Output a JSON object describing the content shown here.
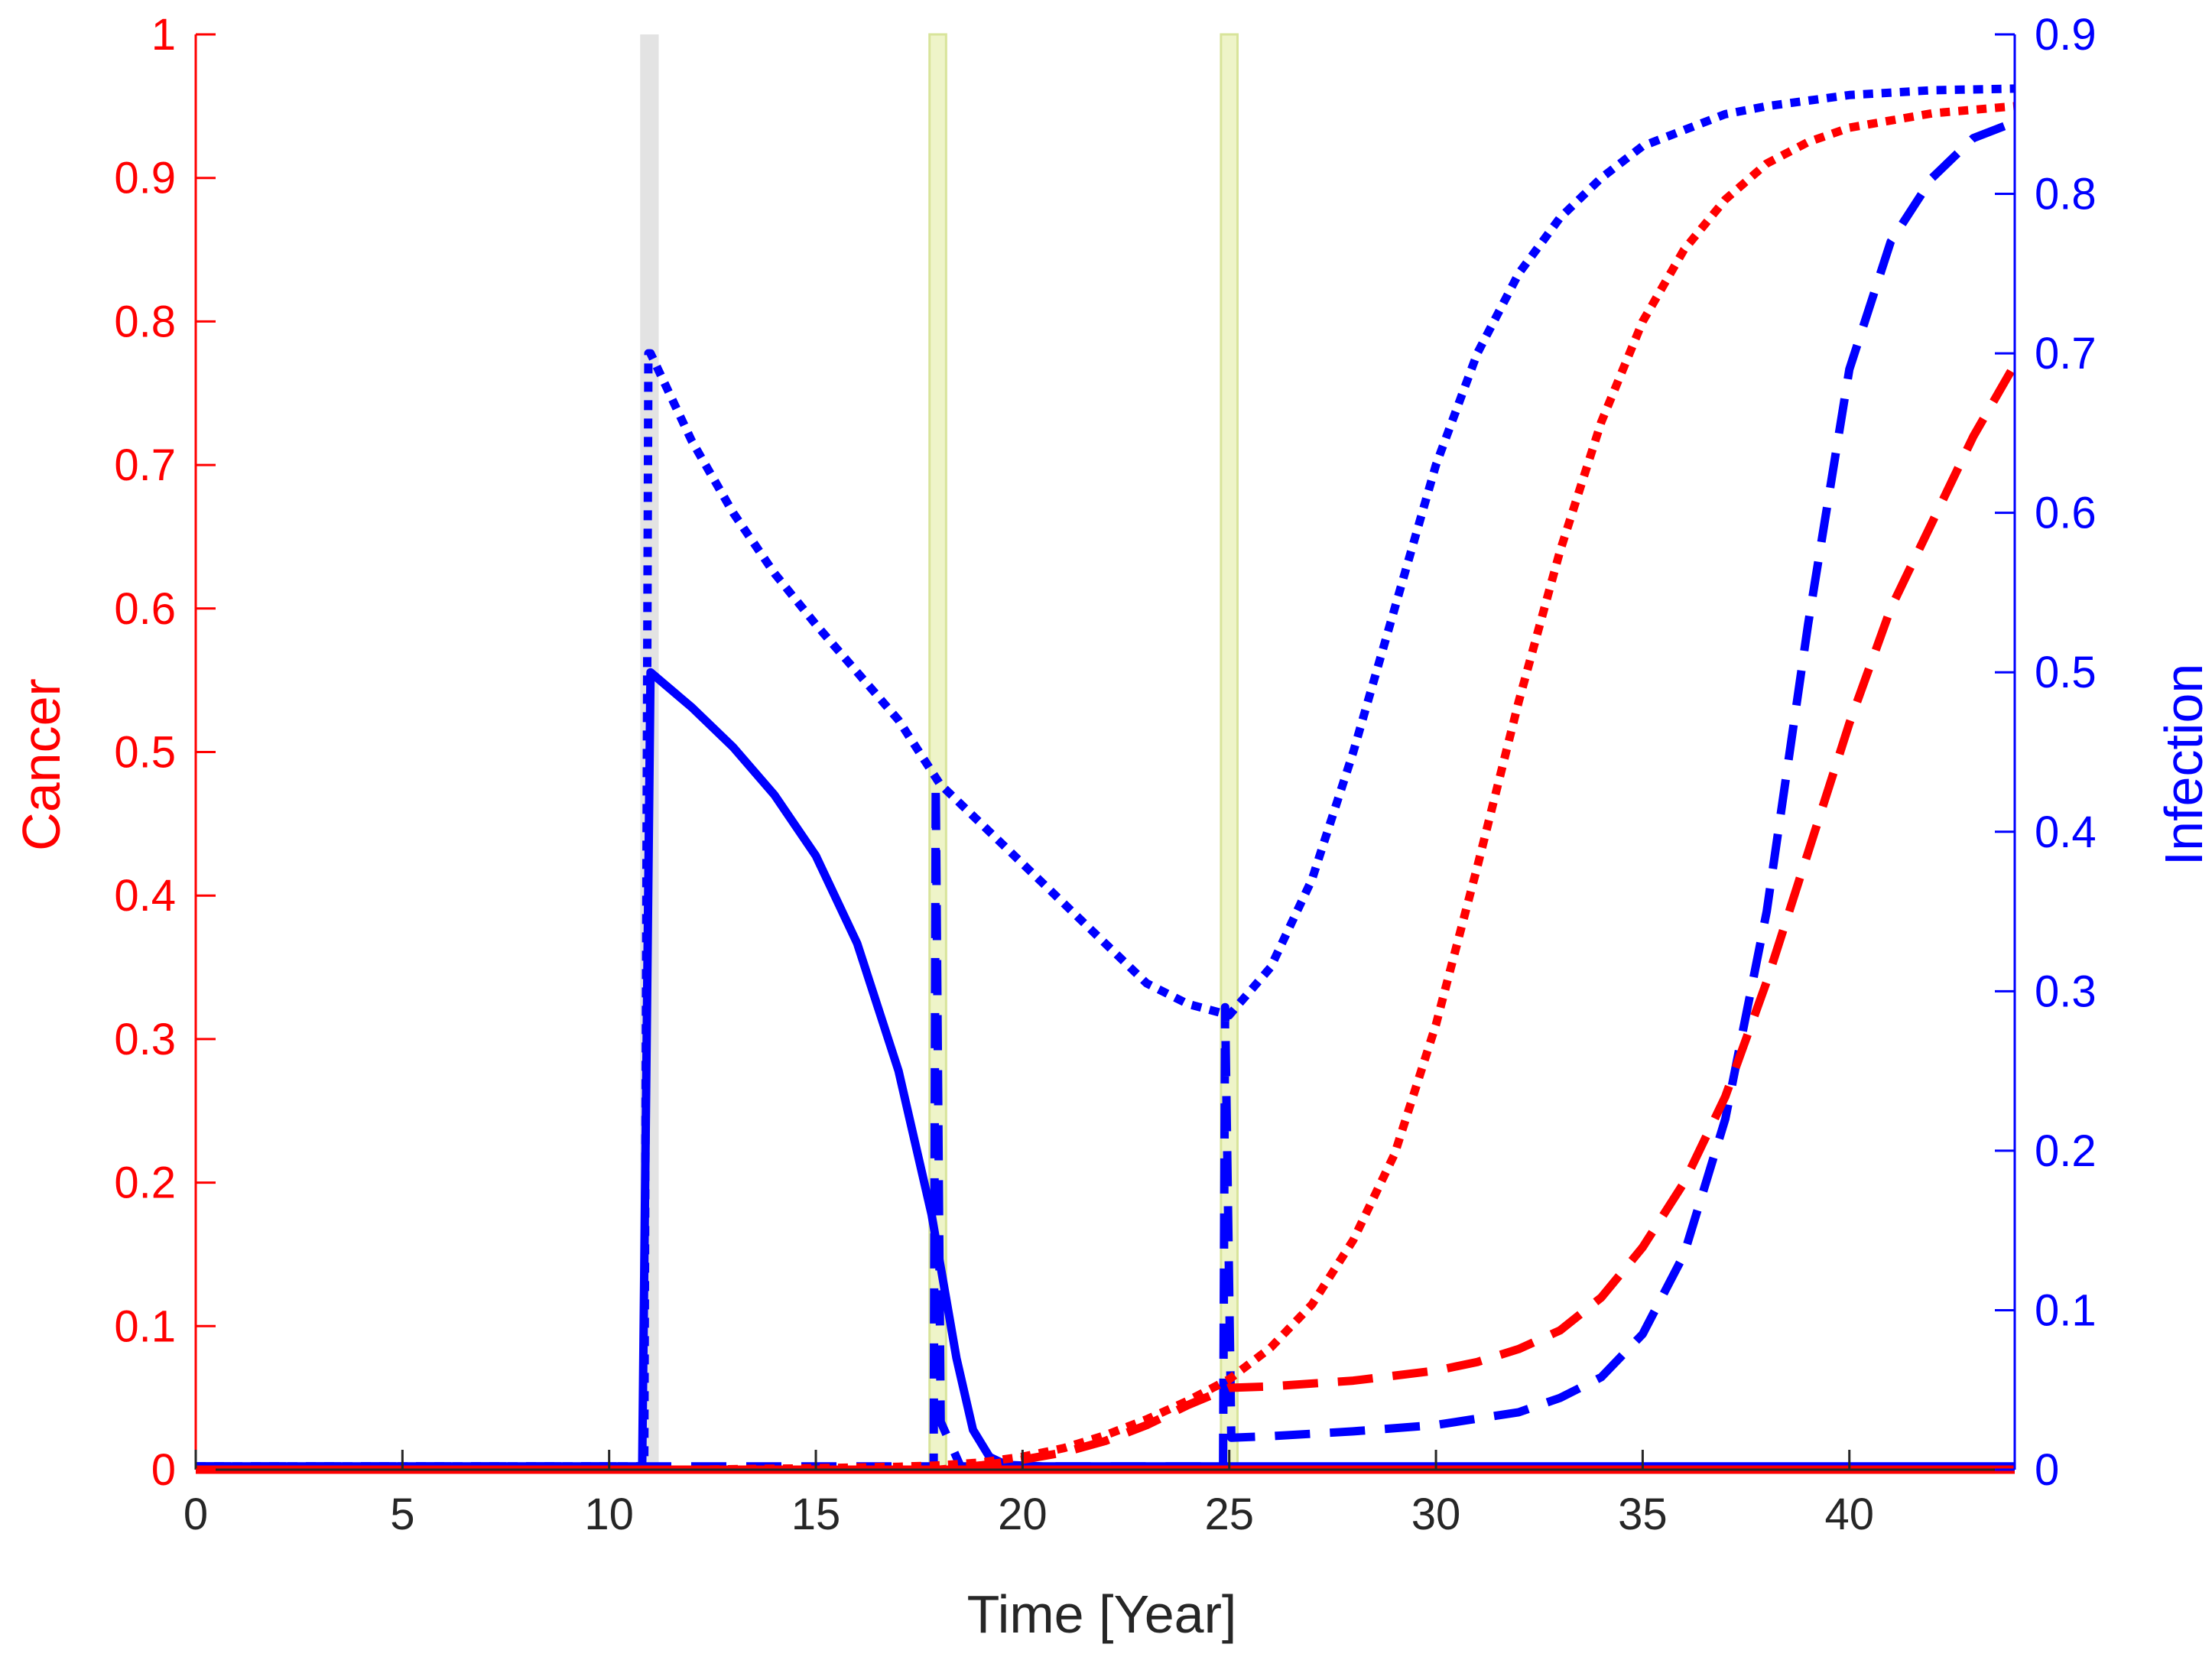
{
  "chart_data": {
    "type": "line",
    "xlabel": "Time [Year]",
    "ylabel_left": "Cancer",
    "ylabel_right": "Infection",
    "xlim": [
      0,
      44
    ],
    "ylim_left": [
      0,
      1
    ],
    "ylim_right": [
      0,
      0.9
    ],
    "x_ticks": [
      "0",
      "5",
      "10",
      "15",
      "20",
      "25",
      "30",
      "35",
      "40"
    ],
    "y_ticks_left": [
      "0",
      "0.1",
      "0.2",
      "0.3",
      "0.4",
      "0.5",
      "0.6",
      "0.7",
      "0.8",
      "0.9",
      "1"
    ],
    "y_ticks_right": [
      "0",
      "0.1",
      "0.2",
      "0.3",
      "0.4",
      "0.5",
      "0.6",
      "0.7",
      "0.8",
      "0.9"
    ],
    "colors": {
      "cancer": "#ff0000",
      "infection": "#0000ff",
      "band_gray": "#e3e3e3",
      "band_green": "#eef4c8",
      "band_green_edge": "#d8e49a",
      "axis_x": "#262626"
    },
    "bands": [
      {
        "x0": 10.75,
        "x1": 11.2,
        "style": "gray"
      },
      {
        "x0": 17.75,
        "x1": 18.15,
        "style": "green"
      },
      {
        "x0": 24.8,
        "x1": 25.2,
        "style": "green"
      }
    ],
    "series": [
      {
        "name": "Infection (solid)",
        "axis": "right",
        "color": "#0000ff",
        "dash": "solid",
        "points": [
          [
            0,
            0.002
          ],
          [
            10.8,
            0.002
          ],
          [
            11.0,
            0.5
          ],
          [
            12,
            0.478
          ],
          [
            13,
            0.453
          ],
          [
            14,
            0.423
          ],
          [
            15,
            0.385
          ],
          [
            16,
            0.33
          ],
          [
            17,
            0.25
          ],
          [
            17.8,
            0.16
          ],
          [
            18.4,
            0.07
          ],
          [
            18.8,
            0.025
          ],
          [
            19.2,
            0.008
          ],
          [
            19.6,
            0.003
          ],
          [
            20.5,
            0.002
          ],
          [
            44,
            0.002
          ]
        ]
      },
      {
        "name": "Infection (dashed)",
        "axis": "right",
        "color": "#0000ff",
        "dash": "dashed",
        "points": [
          [
            0,
            0.002
          ],
          [
            17.85,
            0.002
          ],
          [
            17.9,
            0.43
          ],
          [
            18.02,
            0.03
          ],
          [
            18.5,
            0.002
          ],
          [
            24.85,
            0.002
          ],
          [
            24.9,
            0.29
          ],
          [
            25.05,
            0.02
          ],
          [
            26,
            0.021
          ],
          [
            28,
            0.024
          ],
          [
            30,
            0.028
          ],
          [
            32,
            0.036
          ],
          [
            33,
            0.045
          ],
          [
            34,
            0.058
          ],
          [
            35,
            0.085
          ],
          [
            36,
            0.135
          ],
          [
            37,
            0.22
          ],
          [
            38,
            0.35
          ],
          [
            39,
            0.53
          ],
          [
            40,
            0.69
          ],
          [
            41,
            0.77
          ],
          [
            42,
            0.81
          ],
          [
            43,
            0.835
          ],
          [
            44,
            0.845
          ]
        ]
      },
      {
        "name": "Infection (dotted)",
        "axis": "right",
        "color": "#0000ff",
        "dash": "dotted",
        "points": [
          [
            0,
            0.002
          ],
          [
            10.85,
            0.002
          ],
          [
            10.95,
            0.7
          ],
          [
            11,
            0.7
          ],
          [
            12,
            0.645
          ],
          [
            13,
            0.6
          ],
          [
            14,
            0.562
          ],
          [
            15,
            0.53
          ],
          [
            16,
            0.5
          ],
          [
            17,
            0.47
          ],
          [
            18,
            0.43
          ],
          [
            19,
            0.405
          ],
          [
            20,
            0.38
          ],
          [
            21,
            0.355
          ],
          [
            22,
            0.33
          ],
          [
            23,
            0.305
          ],
          [
            24,
            0.292
          ],
          [
            25,
            0.285
          ],
          [
            26,
            0.315
          ],
          [
            27,
            0.37
          ],
          [
            28,
            0.45
          ],
          [
            29,
            0.54
          ],
          [
            30,
            0.63
          ],
          [
            31,
            0.7
          ],
          [
            32,
            0.75
          ],
          [
            33,
            0.785
          ],
          [
            34,
            0.81
          ],
          [
            35,
            0.83
          ],
          [
            36,
            0.84
          ],
          [
            37,
            0.85
          ],
          [
            38,
            0.855
          ],
          [
            40,
            0.862
          ],
          [
            42,
            0.865
          ],
          [
            44,
            0.866
          ]
        ]
      },
      {
        "name": "Cancer (solid)",
        "axis": "left",
        "color": "#ff0000",
        "dash": "solid",
        "points": [
          [
            0,
            0.0
          ],
          [
            44,
            0.0
          ]
        ]
      },
      {
        "name": "Cancer (dashed)",
        "axis": "left",
        "color": "#ff0000",
        "dash": "dashed",
        "points": [
          [
            0,
            0.0
          ],
          [
            18,
            0.0
          ],
          [
            19,
            0.003
          ],
          [
            20,
            0.007
          ],
          [
            21,
            0.012
          ],
          [
            22,
            0.02
          ],
          [
            23,
            0.031
          ],
          [
            24,
            0.045
          ],
          [
            25,
            0.057
          ],
          [
            26,
            0.058
          ],
          [
            28,
            0.062
          ],
          [
            30,
            0.069
          ],
          [
            31,
            0.075
          ],
          [
            32,
            0.084
          ],
          [
            33,
            0.097
          ],
          [
            34,
            0.12
          ],
          [
            35,
            0.155
          ],
          [
            36,
            0.2
          ],
          [
            37,
            0.26
          ],
          [
            38,
            0.34
          ],
          [
            39,
            0.43
          ],
          [
            40,
            0.52
          ],
          [
            41,
            0.6
          ],
          [
            42,
            0.66
          ],
          [
            43,
            0.72
          ],
          [
            44,
            0.77
          ]
        ]
      },
      {
        "name": "Cancer (dotted)",
        "axis": "left",
        "color": "#ff0000",
        "dash": "dotted",
        "points": [
          [
            0,
            0.0
          ],
          [
            12,
            0.0
          ],
          [
            15,
            0.001
          ],
          [
            17,
            0.002
          ],
          [
            18,
            0.003
          ],
          [
            19,
            0.005
          ],
          [
            20,
            0.009
          ],
          [
            21,
            0.015
          ],
          [
            22,
            0.024
          ],
          [
            23,
            0.035
          ],
          [
            24,
            0.048
          ],
          [
            25,
            0.063
          ],
          [
            26,
            0.085
          ],
          [
            27,
            0.115
          ],
          [
            28,
            0.16
          ],
          [
            29,
            0.22
          ],
          [
            30,
            0.31
          ],
          [
            31,
            0.42
          ],
          [
            32,
            0.535
          ],
          [
            33,
            0.64
          ],
          [
            34,
            0.73
          ],
          [
            35,
            0.8
          ],
          [
            36,
            0.85
          ],
          [
            37,
            0.885
          ],
          [
            38,
            0.91
          ],
          [
            39,
            0.925
          ],
          [
            40,
            0.935
          ],
          [
            42,
            0.945
          ],
          [
            44,
            0.95
          ]
        ]
      }
    ]
  }
}
